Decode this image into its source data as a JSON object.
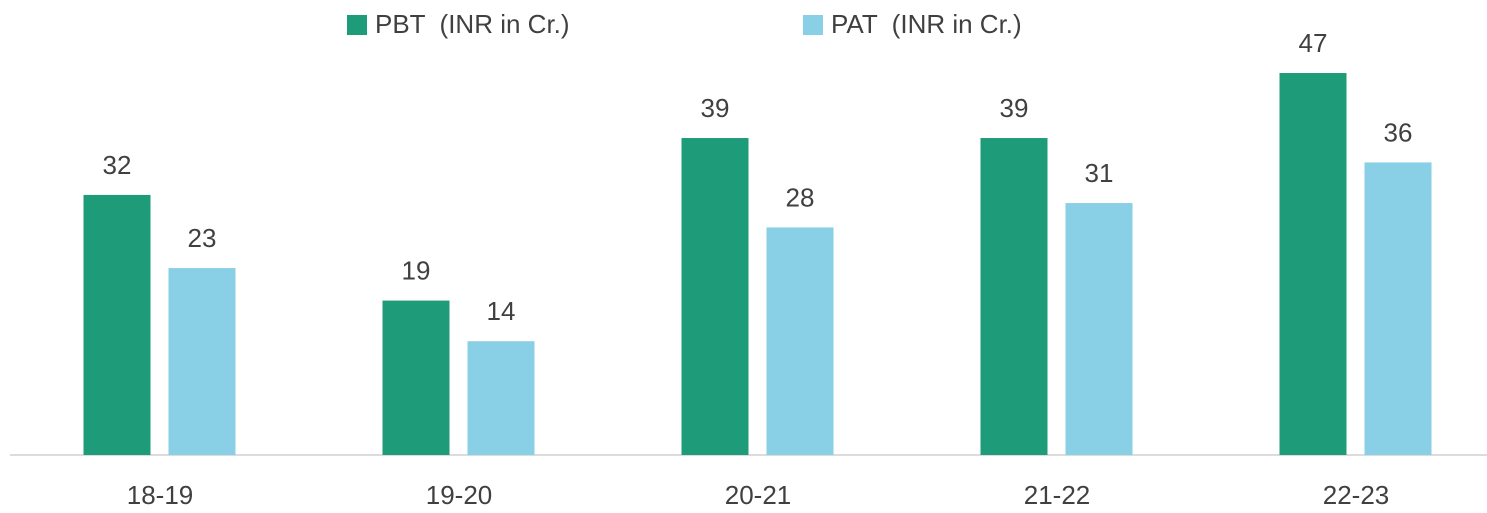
{
  "chart_data": {
    "type": "bar",
    "categories": [
      "18-19",
      "19-20",
      "20-21",
      "21-22",
      "22-23"
    ],
    "series": [
      {
        "name": "PBT  (INR in Cr.)",
        "color": "#1e9b78",
        "values": [
          32,
          19,
          39,
          39,
          47
        ]
      },
      {
        "name": "PAT  (INR in Cr.)",
        "color": "#89cfe5",
        "values": [
          23,
          14,
          28,
          31,
          36
        ]
      }
    ],
    "ylim": [
      0,
      55
    ],
    "grid": false,
    "legend": "top"
  }
}
